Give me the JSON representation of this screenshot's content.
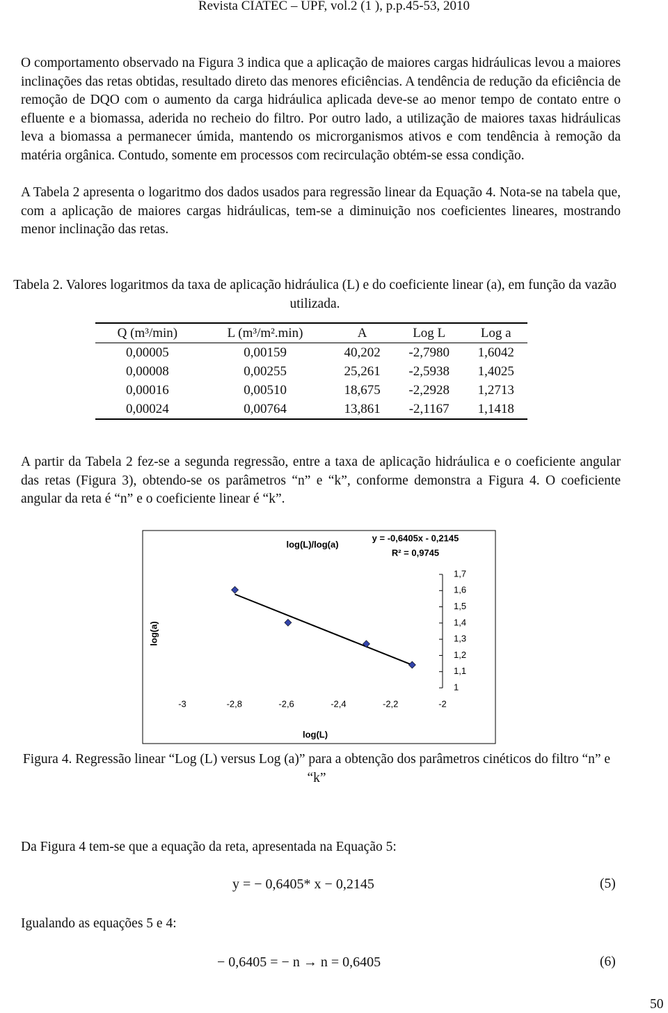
{
  "header": "Revista CIATEC – UPF, vol.2 (1 ), p.p.45-53, 2010",
  "paragraphs": [
    "O comportamento observado na Figura 3 indica que a aplicação de maiores cargas hidráulicas levou a maiores inclinações das retas obtidas, resultado direto das menores eficiências. A tendência de redução da eficiência de remoção de DQO com o aumento da carga hidráulica aplicada deve-se ao menor tempo de contato entre o efluente e a biomassa, aderida no recheio do filtro. Por outro lado, a utilização de maiores taxas hidráulicas leva a biomassa a permanecer úmida, mantendo os microrganismos ativos e com tendência à remoção da matéria orgânica. Contudo, somente em processos com recirculação obtém-se essa condição.",
    "A Tabela 2 apresenta o logaritmo dos dados usados para regressão linear da Equação 4. Nota-se na tabela que, com a aplicação de maiores cargas hidráulicas, tem-se a diminuição nos coeficientes lineares, mostrando menor inclinação das retas.",
    "A partir da Tabela 2 fez-se a segunda regressão, entre a taxa de aplicação hidráulica e o coeficiente angular das retas (Figura 3), obtendo-se os parâmetros “n” e “k”, conforme demonstra a Figura 4. O coeficiente angular da reta é “n” e o coeficiente linear é “k”.",
    "Da Figura 4 tem-se que a equação da reta, apresentada na Equação 5:",
    "Igualando as equações 5 e 4:"
  ],
  "table": {
    "caption": "Tabela 2. Valores logaritmos da taxa de aplicação hidráulica (L) e do coeficiente linear (a), em função da vazão utilizada.",
    "header": [
      "Q (m³/min)",
      "L (m³/m².min)",
      "A",
      "Log L",
      "Log a"
    ],
    "rows": [
      [
        "0,00005",
        "0,00159",
        "40,202",
        "-2,7980",
        "1,6042"
      ],
      [
        "0,00008",
        "0,00255",
        "25,261",
        "-2,5938",
        "1,4025"
      ],
      [
        "0,00016",
        "0,00510",
        "18,675",
        "-2,2928",
        "1,2713"
      ],
      [
        "0,00024",
        "0,00764",
        "13,861",
        "-2,1167",
        "1,1418"
      ]
    ]
  },
  "chart_data": {
    "type": "scatter",
    "title": "log(L)/log(a)",
    "x_label": "log(L)",
    "y_label": "log(a)",
    "x": [
      -2.798,
      -2.5938,
      -2.2928,
      -2.1167
    ],
    "series": [
      {
        "color": "#3344aa",
        "values": [
          1.6042,
          1.4025,
          1.2713,
          1.1418
        ]
      }
    ],
    "trendline": {
      "label": "y = -0,6405x - 0,2145",
      "r2_label": "R² = 0,9745",
      "slope": -0.6405,
      "intercept": -0.2145,
      "color": "#000000"
    },
    "xlim": [
      -3,
      -2
    ],
    "ylim": [
      1,
      1.7
    ],
    "xticks": [
      -3,
      {
        "value": -2.8,
        "label": "-2,8"
      },
      {
        "value": -2.6,
        "label": "-2,6"
      },
      {
        "value": -2.4,
        "label": "-2,4"
      },
      {
        "value": -2.2,
        "label": "-2,2"
      },
      -2
    ],
    "yticks": [
      1,
      {
        "value": 1.1,
        "label": "1,1"
      },
      {
        "value": 1.2,
        "label": "1,2"
      },
      {
        "value": 1.3,
        "label": "1,3"
      },
      {
        "value": 1.4,
        "label": "1,4"
      },
      {
        "value": 1.5,
        "label": "1,5"
      },
      {
        "value": 1.6,
        "label": "1,6"
      },
      {
        "value": 1.7,
        "label": "1,7"
      }
    ],
    "y_axis_side": "right",
    "grid": false
  },
  "figure_caption": "Figura 4. Regressão linear “Log (L) versus Log (a)” para a obtenção dos parâmetros cinéticos do filtro “n” e “k”",
  "equations": [
    {
      "text": "y = − 0,6405* x − 0,2145",
      "number": "(5)"
    },
    {
      "text": "− 0,6405 = − n → n = 0,6405",
      "number": "(6)"
    }
  ],
  "page_number": "50"
}
